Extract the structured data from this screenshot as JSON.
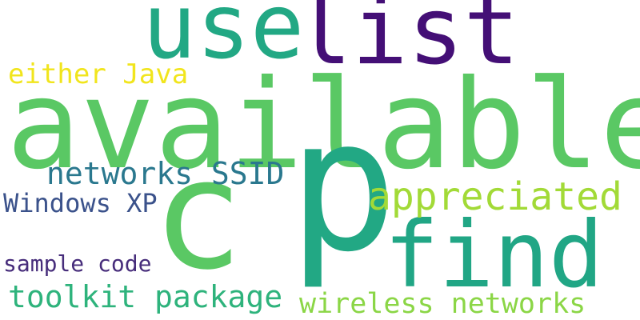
{
  "words": [
    {
      "text": "available",
      "color": "#5ac864"
    },
    {
      "text": "p",
      "color": "#22a884"
    },
    {
      "text": "list",
      "color": "#440f76"
    },
    {
      "text": "use",
      "color": "#22a884"
    },
    {
      "text": "c",
      "color": "#5ac864"
    },
    {
      "text": "find",
      "color": "#21a685"
    },
    {
      "text": "appreciated",
      "color": "#a2da37"
    },
    {
      "text": "networks SSID",
      "color": "#2a788e"
    },
    {
      "text": "wireless networks",
      "color": "#8bd646"
    },
    {
      "text": "toolkit package",
      "color": "#2eb37c"
    },
    {
      "text": "either Java",
      "color": "#f1e51d"
    },
    {
      "text": "Windows XP",
      "color": "#3b528b"
    },
    {
      "text": "sample code",
      "color": "#472d7b"
    }
  ]
}
